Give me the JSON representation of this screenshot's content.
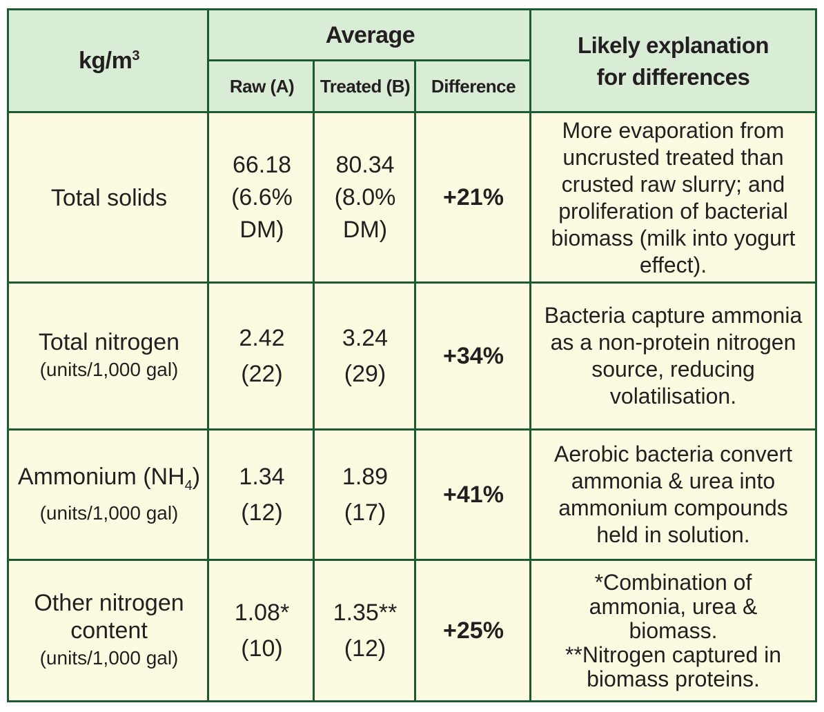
{
  "header": {
    "unit_label": "kg/m",
    "unit_sup": "3",
    "average": "Average",
    "raw": "Raw (A)",
    "treated": "Treated (B)",
    "difference": "Difference",
    "explanation_line1": "Likely explanation",
    "explanation_line2": "for differences"
  },
  "rows": [
    {
      "label": [
        "Total solids"
      ],
      "raw": [
        "66.18",
        "(6.6%",
        "DM)"
      ],
      "treated": [
        "80.34",
        "(8.0%",
        "DM)"
      ],
      "difference": "+21%",
      "explanation": [
        "More evaporation from",
        "uncrusted treated than",
        "crusted raw slurry; and",
        "proliferation of bacterial",
        "biomass (milk into yogurt",
        "effect)."
      ]
    },
    {
      "label": [
        "Total nitrogen"
      ],
      "unit": "(units/1,000 gal)",
      "raw": [
        "2.42",
        "(22)"
      ],
      "treated": [
        "3.24",
        "(29)"
      ],
      "difference": "+34%",
      "explanation": [
        "Bacteria capture ammonia",
        "as a non-protein nitrogen",
        "source, reducing",
        "volatilisation."
      ]
    },
    {
      "label_main": "Ammonium (NH",
      "label_sub": "4",
      "label_close": ")",
      "unit": "(units/1,000 gal)",
      "raw": [
        "1.34",
        "(12)"
      ],
      "treated": [
        "1.89",
        "(17)"
      ],
      "difference": "+41%",
      "explanation": [
        "Aerobic bacteria convert",
        "ammonia & urea into",
        "ammonium compounds",
        "held in solution."
      ]
    },
    {
      "label": [
        "Other nitrogen",
        "content"
      ],
      "unit": "(units/1,000 gal)",
      "raw": [
        "1.08*",
        "(10)"
      ],
      "treated": [
        "1.35**",
        "(12)"
      ],
      "difference": "+25%",
      "explanation": [
        "*Combination of",
        "ammonia, urea &",
        "biomass.",
        "**Nitrogen captured in",
        "biomass proteins."
      ]
    }
  ]
}
